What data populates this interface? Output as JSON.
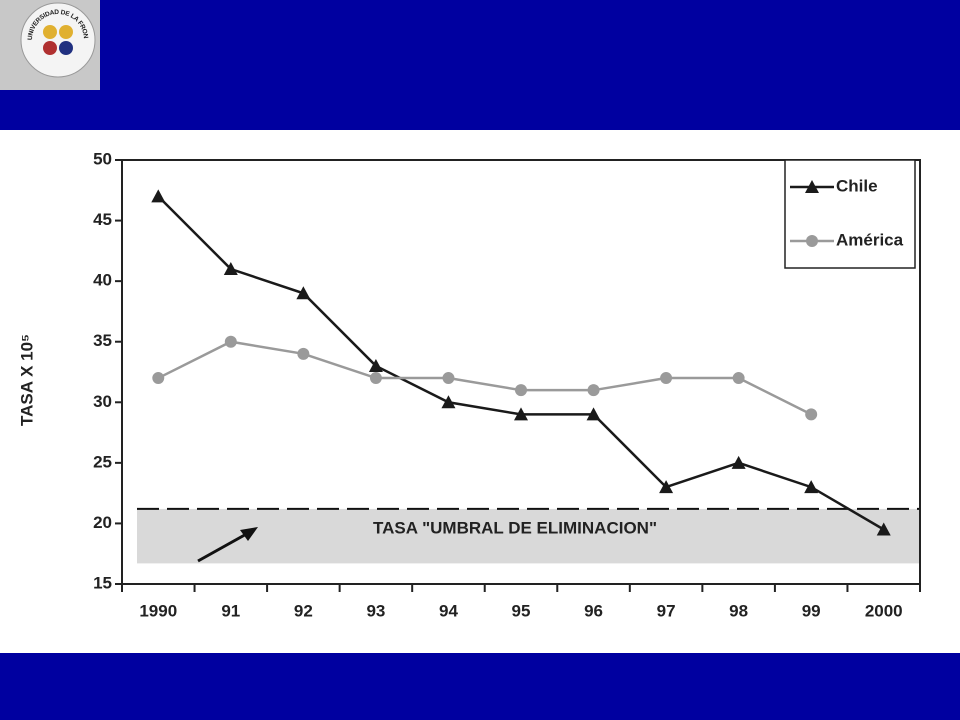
{
  "logo_text": "UNIVERSIDAD DE LA FRONTERA",
  "chart_data": {
    "type": "line",
    "ylabel": "TASA X 10⁵",
    "categories": [
      "1990",
      "91",
      "92",
      "93",
      "94",
      "95",
      "96",
      "97",
      "98",
      "99",
      "2000"
    ],
    "series": [
      {
        "name": "Chile",
        "color": "#1a1a1a",
        "marker": "triangle",
        "values": [
          47,
          41,
          39,
          33,
          30,
          29,
          29,
          23,
          25,
          23,
          19.5
        ]
      },
      {
        "name": "América",
        "color": "#9a9a9a",
        "marker": "circle",
        "values": [
          32,
          35,
          34,
          32,
          32,
          31,
          31,
          32,
          32,
          29,
          null
        ]
      }
    ],
    "ylim": [
      15,
      50
    ],
    "yticks": [
      15,
      20,
      25,
      30,
      35,
      40,
      45,
      50
    ],
    "threshold": 21.2,
    "band": [
      16.7,
      21.2
    ],
    "band_color": "#d9d9d9",
    "annotation": "TASA \"UMBRAL DE ELIMINACION\"",
    "legend": "top-right"
  }
}
